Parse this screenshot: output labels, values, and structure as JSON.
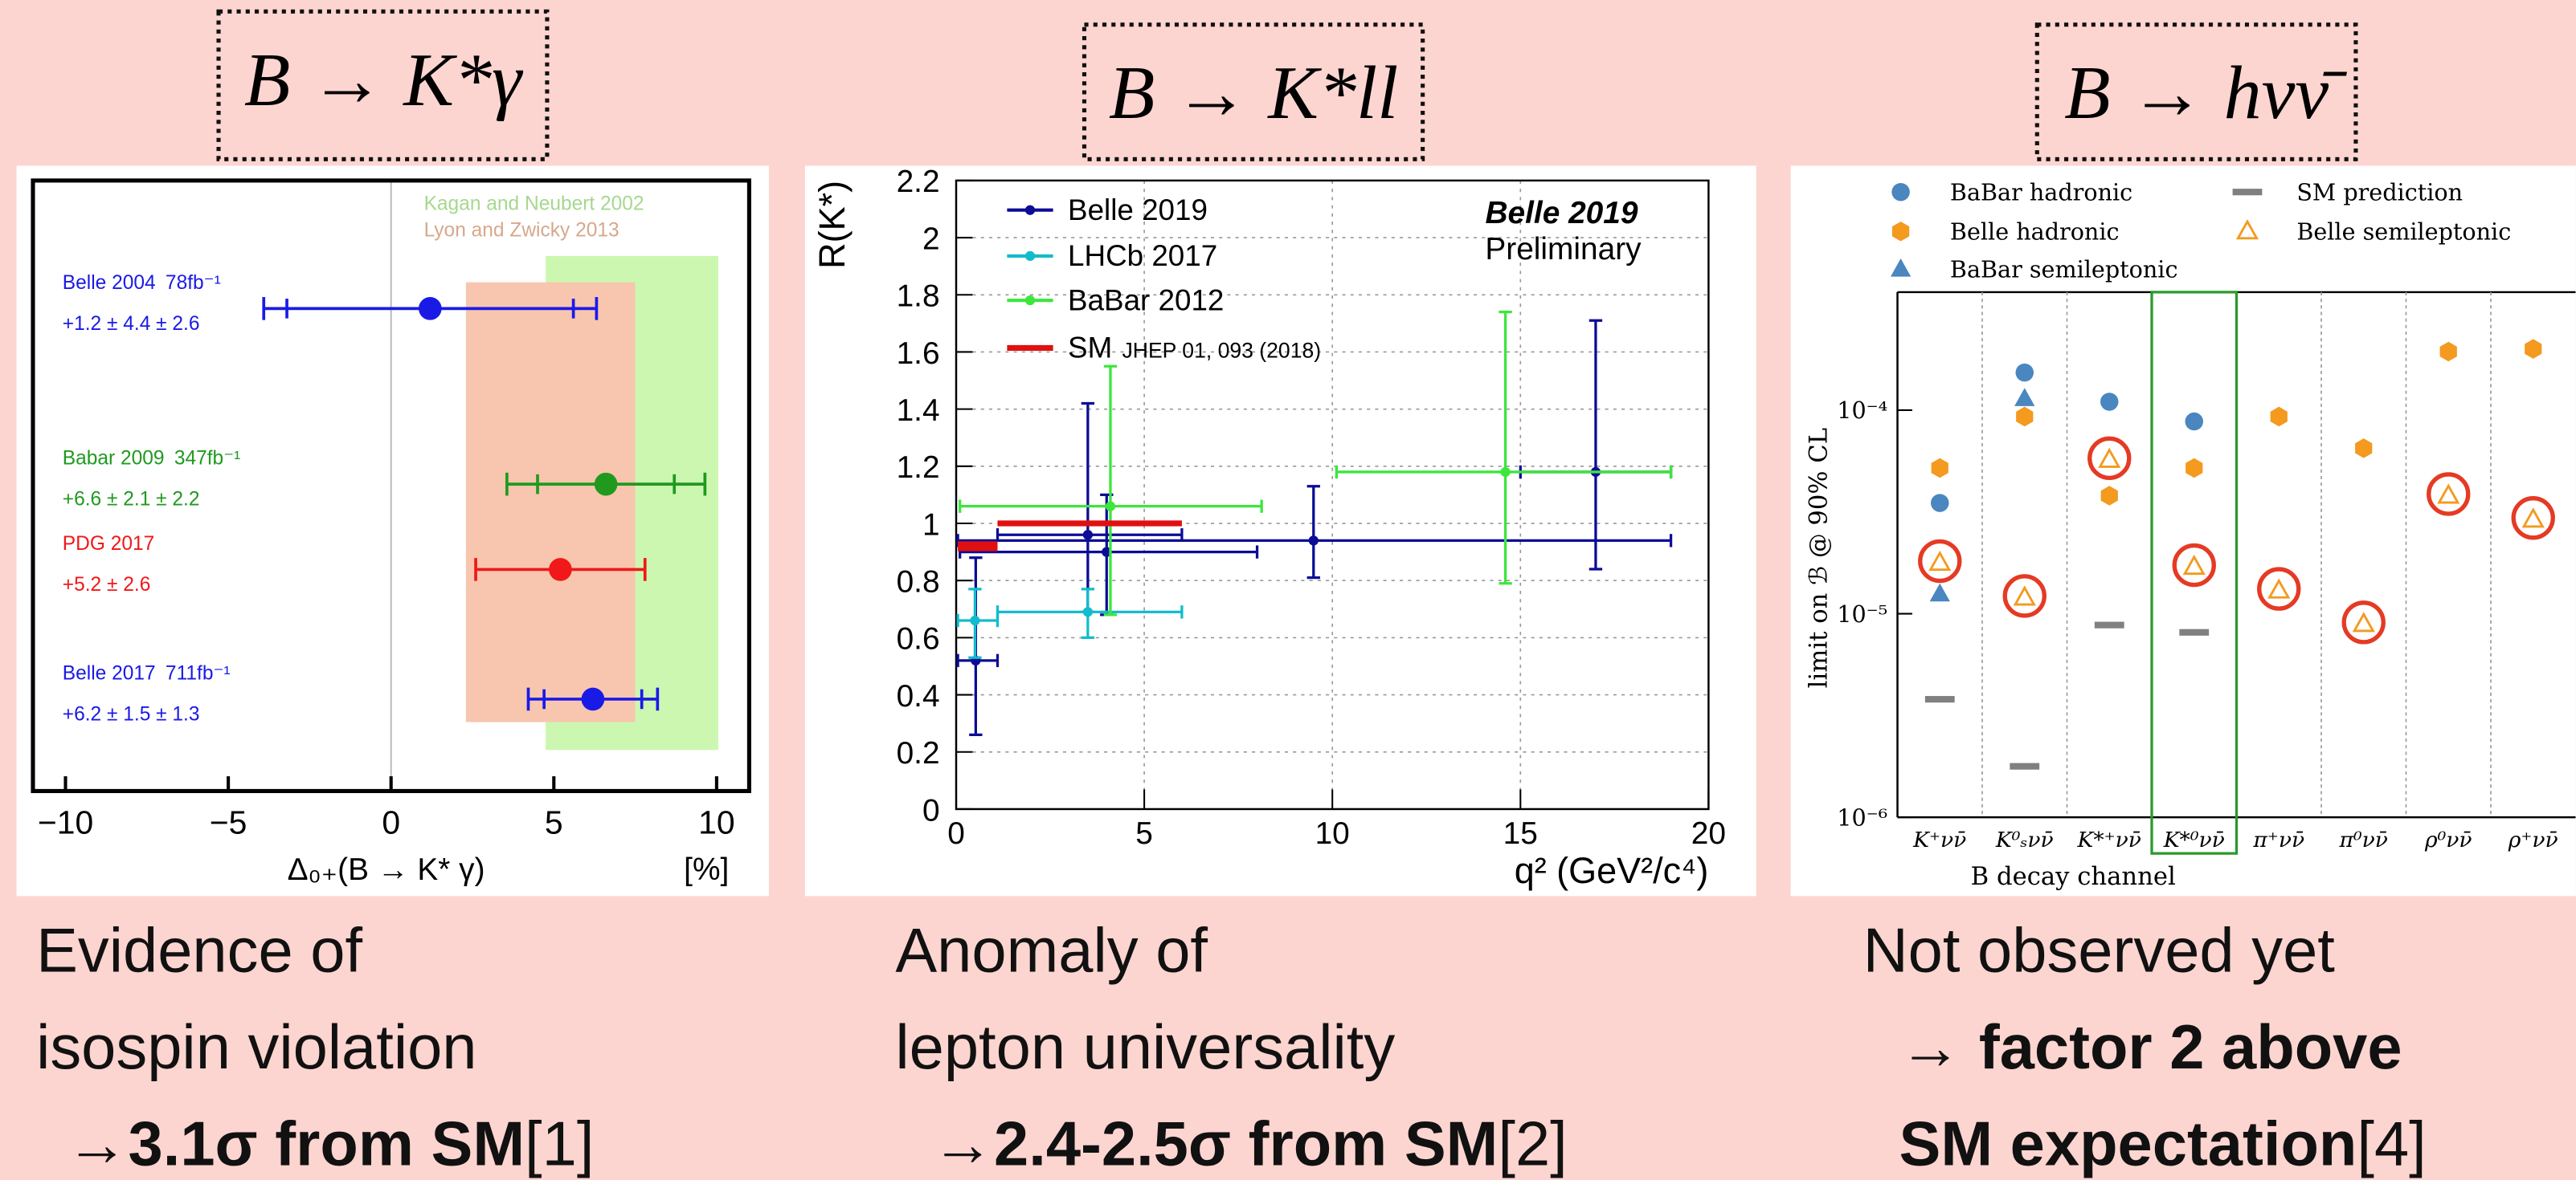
{
  "headings": [
    "B → K*γ",
    "B → K*ll",
    "B → hνν̄"
  ],
  "captions": [
    [
      [
        {
          "text": "Evidence of"
        }
      ],
      [
        {
          "text": "isospin violation"
        }
      ],
      [
        {
          "text": "→"
        },
        {
          "text": "3.1σ from SM",
          "bold": true
        },
        {
          "text": "[1]"
        }
      ]
    ],
    [
      [
        {
          "text": "Anomaly of"
        }
      ],
      [
        {
          "text": "lepton universality"
        }
      ],
      [
        {
          "text": "→"
        },
        {
          "text": "2.4-2.5σ from SM",
          "bold": true
        },
        {
          "text": "[2]"
        }
      ]
    ],
    [
      [
        {
          "text": "Not observed yet"
        }
      ],
      [
        {
          "text": "→ "
        },
        {
          "text": "factor 2 above",
          "bold": true
        }
      ],
      [
        {
          "text": "SM expectation",
          "bold": true
        },
        {
          "text": "[4]"
        }
      ]
    ]
  ],
  "chart_data": [
    {
      "type": "hbar-errors",
      "xlabel": "Δ₀₊(B → K* γ)",
      "xunit": "[%]",
      "xlim": [
        -11,
        11
      ],
      "xticks": [
        {
          "value": -10,
          "label": "−10"
        },
        {
          "value": -5,
          "label": "−5"
        },
        0,
        5,
        10
      ],
      "bands": [
        {
          "name": "Kagan and Neubert 2002",
          "range": [
            4.75,
            10.05
          ],
          "color": "#ccf7b0"
        },
        {
          "name": "Lyon and Zwicky 2013",
          "range": [
            2.3,
            7.5
          ],
          "color": "#f8c6ae"
        }
      ],
      "series": [
        {
          "name": "Belle 2004",
          "lumi": "78fb⁻¹",
          "color": "#1a1ae6",
          "values": [
            1.2
          ],
          "stat": [
            4.4
          ],
          "syst": [
            2.6
          ],
          "value_labels": [
            "+1.2 ± 4.4 ± 2.6"
          ]
        },
        {
          "name": "Babar 2009",
          "lumi": "347fb⁻¹",
          "color": "#1f9a1f",
          "values": [
            6.6
          ],
          "stat": [
            2.1
          ],
          "syst": [
            2.2
          ],
          "value_labels": [
            "+6.6 ± 2.1 ± 2.2"
          ]
        },
        {
          "name": "PDG 2017",
          "color": "#f01818",
          "values": [
            5.2
          ],
          "stat": [
            2.6
          ],
          "value_labels": [
            "+5.2 ± 2.6"
          ]
        },
        {
          "name": "Belle 2017",
          "lumi": "711fb⁻¹",
          "color": "#1a1ae6",
          "values": [
            6.2
          ],
          "stat": [
            1.5
          ],
          "syst": [
            1.3
          ],
          "value_labels": [
            "+6.2 ± 1.5 ± 1.3"
          ]
        }
      ]
    },
    {
      "type": "xy-errors",
      "xlabel": "q² (GeV²/c⁴)",
      "ylabel": "R(K*)",
      "annotation": {
        "title": "Belle 2019",
        "subtitle": "Preliminary"
      },
      "xlim": [
        0,
        20
      ],
      "ylim": [
        0,
        2.2
      ],
      "xticks": [
        0,
        5,
        10,
        15,
        20
      ],
      "yticks": [
        0,
        0.2,
        0.4,
        0.6,
        0.8,
        1,
        1.2,
        1.4,
        1.6,
        1.8,
        2,
        2.2
      ],
      "grid": true,
      "series": [
        {
          "name": "Belle 2019",
          "color": "#0c0c96",
          "x": [
            0.52,
            3.5,
            4,
            9.5,
            17
          ],
          "x_low": [
            0.045,
            1.1,
            0.1,
            0.045,
            15
          ],
          "x_high": [
            1.1,
            6,
            8,
            19,
            19
          ],
          "values": [
            0.52,
            0.96,
            0.9,
            0.94,
            1.18
          ],
          "y_low": [
            0.26,
            0.69,
            0.68,
            0.81,
            0.84
          ],
          "y_high": [
            0.88,
            1.42,
            1.1,
            1.13,
            1.71
          ]
        },
        {
          "name": "LHCb 2017",
          "color": "#12bccc",
          "x": [
            0.5,
            3.5
          ],
          "x_low": [
            0.045,
            1.1
          ],
          "x_high": [
            1.1,
            6
          ],
          "values": [
            0.66,
            0.69
          ],
          "y_low": [
            0.53,
            0.6
          ],
          "y_high": [
            0.77,
            0.77
          ]
        },
        {
          "name": "BaBar 2012",
          "color": "#3ce63c",
          "x": [
            4.1,
            14.6
          ],
          "x_low": [
            0.1,
            10.11
          ],
          "x_high": [
            8.12,
            19
          ],
          "values": [
            1.06,
            1.18
          ],
          "y_low": [
            0.68,
            0.79
          ],
          "y_high": [
            1.55,
            1.74
          ]
        },
        {
          "name": "SM",
          "reference": "JHEP 01, 093 (2018)",
          "color": "#e01010",
          "x_low": [
            0.045,
            1.1
          ],
          "x_high": [
            1.1,
            6
          ],
          "values": [
            0.92,
            1.0
          ]
        }
      ]
    },
    {
      "type": "scatter",
      "ylog": true,
      "xlabel": "B decay channel",
      "ylabel": "limit on ℬ @ 90% CL",
      "categories": [
        "K⁺νν̄",
        "K⁰ₛνν̄",
        "K*⁺νν̄",
        "K*⁰νν̄",
        "π⁺νν̄",
        "π⁰νν̄",
        "ρ⁰νν̄",
        "ρ⁺νν̄"
      ],
      "highlight_category": 3,
      "ylim": [
        1e-06,
        0.00038
      ],
      "yticks": [
        {
          "value": 1e-06,
          "label": "10⁻⁶"
        },
        {
          "value": 1e-05,
          "label": "10⁻⁵"
        },
        {
          "value": 0.0001,
          "label": "10⁻⁴"
        }
      ],
      "series": [
        {
          "name": "BaBar hadronic",
          "marker": "circle",
          "color": "#4a86bf",
          "values": [
            3.5e-05,
            0.000153,
            0.00011,
            8.8e-05,
            null,
            null,
            null,
            null
          ]
        },
        {
          "name": "Belle hadronic",
          "marker": "hexagon",
          "color": "#f39a1f",
          "values": [
            5.2e-05,
            9.3e-05,
            3.8e-05,
            5.2e-05,
            9.3e-05,
            6.5e-05,
            0.000194,
            0.0002
          ]
        },
        {
          "name": "BaBar semileptonic",
          "marker": "triangle",
          "color": "#4a86bf",
          "values": [
            1.25e-05,
            0.000114,
            null,
            null,
            null,
            null,
            null,
            null
          ]
        },
        {
          "name": "SM prediction",
          "marker": "dash",
          "color": "#808080",
          "values": [
            3.8e-06,
            1.78e-06,
            8.8e-06,
            8.1e-06,
            null,
            null,
            null,
            null
          ]
        },
        {
          "name": "Belle semileptonic",
          "marker": "open-triangle",
          "color": "#f39a1f",
          "circled": true,
          "values": [
            1.78e-05,
            1.2e-05,
            5.7e-05,
            1.7e-05,
            1.3e-05,
            8.9e-06,
            3.8e-05,
            2.9e-05
          ]
        }
      ]
    }
  ]
}
